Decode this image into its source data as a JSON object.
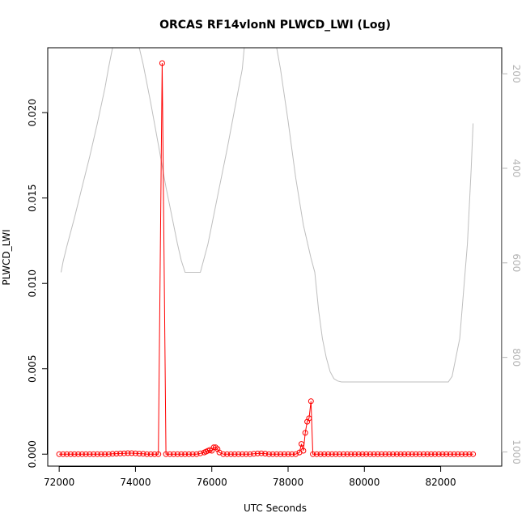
{
  "chart_data": {
    "type": "line",
    "title": "ORCAS RF14vlonN PLWCD_LWI (Log)",
    "xlabel": "UTC Seconds",
    "ylabel": "PLWCD_LWI",
    "xlim": [
      71700,
      83600
    ],
    "ylim": [
      -0.0007,
      0.0238
    ],
    "x_ticks": [
      72000,
      74000,
      76000,
      78000,
      80000,
      82000
    ],
    "x_tick_labels": [
      "72000",
      "74000",
      "76000",
      "78000",
      "80000",
      "82000"
    ],
    "y_ticks": [
      0.0,
      0.005,
      0.01,
      0.015,
      0.02
    ],
    "y_tick_labels": [
      "0.000",
      "0.005",
      "0.010",
      "0.015",
      "0.020"
    ],
    "y2_lim": [
      1030,
      145
    ],
    "y2_ticks": [
      200,
      400,
      600,
      800,
      1000
    ],
    "y2_tick_labels": [
      "200",
      "400",
      "600",
      "800",
      "1000"
    ],
    "colors": {
      "primary": "#ff0000",
      "secondary": "#bebebe",
      "axis": "#000000",
      "right_axis": "#b5b5b5"
    },
    "series": [
      {
        "role": "primary",
        "style": "line-with-open-circles",
        "color": "#ff0000",
        "points": [
          [
            72000,
            0
          ],
          [
            72100,
            0
          ],
          [
            72200,
            0
          ],
          [
            72300,
            0
          ],
          [
            72400,
            0
          ],
          [
            72500,
            0
          ],
          [
            72600,
            0
          ],
          [
            72700,
            0
          ],
          [
            72800,
            0
          ],
          [
            72900,
            0
          ],
          [
            73000,
            0
          ],
          [
            73100,
            0
          ],
          [
            73200,
            0
          ],
          [
            73300,
            0
          ],
          [
            73400,
            2e-05
          ],
          [
            73500,
            3e-05
          ],
          [
            73600,
            4e-05
          ],
          [
            73700,
            5e-05
          ],
          [
            73800,
            6e-05
          ],
          [
            73900,
            6e-05
          ],
          [
            74000,
            5e-05
          ],
          [
            74100,
            3e-05
          ],
          [
            74200,
            2e-05
          ],
          [
            74300,
            0
          ],
          [
            74400,
            0
          ],
          [
            74500,
            0
          ],
          [
            74600,
            0
          ],
          [
            74700,
            0.0229
          ],
          [
            74800,
            0
          ],
          [
            74900,
            0
          ],
          [
            75000,
            0
          ],
          [
            75100,
            0
          ],
          [
            75200,
            0
          ],
          [
            75300,
            0
          ],
          [
            75400,
            0
          ],
          [
            75500,
            0
          ],
          [
            75600,
            0
          ],
          [
            75700,
            5e-05
          ],
          [
            75800,
            0.0001
          ],
          [
            75850,
            0.00015
          ],
          [
            75900,
            0.0002
          ],
          [
            75950,
            0.00025
          ],
          [
            76000,
            0.0002
          ],
          [
            76050,
            0.0004
          ],
          [
            76100,
            0.0004
          ],
          [
            76150,
            0.0003
          ],
          [
            76200,
            0.0001
          ],
          [
            76300,
            0
          ],
          [
            76400,
            0
          ],
          [
            76500,
            0
          ],
          [
            76600,
            0
          ],
          [
            76700,
            0
          ],
          [
            76800,
            0
          ],
          [
            76900,
            0
          ],
          [
            77000,
            0
          ],
          [
            77100,
            2e-05
          ],
          [
            77200,
            4e-05
          ],
          [
            77300,
            5e-05
          ],
          [
            77400,
            3e-05
          ],
          [
            77500,
            0
          ],
          [
            77600,
            0
          ],
          [
            77700,
            0
          ],
          [
            77800,
            0
          ],
          [
            77900,
            0
          ],
          [
            78000,
            0
          ],
          [
            78100,
            0
          ],
          [
            78200,
            0
          ],
          [
            78300,
            0.0001
          ],
          [
            78350,
            0.0006
          ],
          [
            78400,
            0.0002
          ],
          [
            78450,
            0.00125
          ],
          [
            78500,
            0.0019
          ],
          [
            78550,
            0.0021
          ],
          [
            78600,
            0.0031
          ],
          [
            78650,
            0
          ],
          [
            78750,
            0
          ],
          [
            78850,
            0
          ],
          [
            78950,
            0
          ],
          [
            79050,
            0
          ],
          [
            79150,
            0
          ],
          [
            79250,
            0
          ],
          [
            79350,
            0
          ],
          [
            79450,
            0
          ],
          [
            79550,
            0
          ],
          [
            79650,
            0
          ],
          [
            79750,
            0
          ],
          [
            79850,
            0
          ],
          [
            79950,
            0
          ],
          [
            80050,
            0
          ],
          [
            80150,
            0
          ],
          [
            80250,
            0
          ],
          [
            80350,
            0
          ],
          [
            80450,
            0
          ],
          [
            80550,
            0
          ],
          [
            80650,
            0
          ],
          [
            80750,
            0
          ],
          [
            80850,
            0
          ],
          [
            80950,
            0
          ],
          [
            81050,
            0
          ],
          [
            81150,
            0
          ],
          [
            81250,
            0
          ],
          [
            81350,
            0
          ],
          [
            81450,
            0
          ],
          [
            81550,
            0
          ],
          [
            81650,
            0
          ],
          [
            81750,
            0
          ],
          [
            81850,
            0
          ],
          [
            81950,
            0
          ],
          [
            82050,
            0
          ],
          [
            82150,
            0
          ],
          [
            82250,
            0
          ],
          [
            82350,
            0
          ],
          [
            82450,
            0
          ],
          [
            82550,
            0
          ],
          [
            82650,
            0
          ],
          [
            82750,
            0
          ],
          [
            82850,
            0
          ]
        ]
      },
      {
        "role": "secondary",
        "axis": "right",
        "style": "line",
        "color": "#bebebe",
        "points": [
          [
            72050,
            620
          ],
          [
            72100,
            598
          ],
          [
            72200,
            565
          ],
          [
            72400,
            505
          ],
          [
            72600,
            440
          ],
          [
            72800,
            375
          ],
          [
            73000,
            305
          ],
          [
            73200,
            230
          ],
          [
            73300,
            185
          ],
          [
            73400,
            145
          ],
          [
            74100,
            145
          ],
          [
            74200,
            180
          ],
          [
            74400,
            262
          ],
          [
            74600,
            350
          ],
          [
            74800,
            440
          ],
          [
            75000,
            520
          ],
          [
            75100,
            560
          ],
          [
            75200,
            595
          ],
          [
            75300,
            620
          ],
          [
            75700,
            620
          ],
          [
            75800,
            590
          ],
          [
            75900,
            560
          ],
          [
            76000,
            520
          ],
          [
            76200,
            440
          ],
          [
            76400,
            360
          ],
          [
            76600,
            275
          ],
          [
            76800,
            190
          ],
          [
            76850,
            145
          ],
          [
            77700,
            145
          ],
          [
            77800,
            190
          ],
          [
            78000,
            300
          ],
          [
            78200,
            420
          ],
          [
            78400,
            520
          ],
          [
            78600,
            590
          ],
          [
            78700,
            620
          ],
          [
            78800,
            700
          ],
          [
            78900,
            760
          ],
          [
            79000,
            800
          ],
          [
            79100,
            830
          ],
          [
            79200,
            845
          ],
          [
            79300,
            850
          ],
          [
            79400,
            852
          ],
          [
            79600,
            852
          ],
          [
            80000,
            852
          ],
          [
            80500,
            852
          ],
          [
            81000,
            852
          ],
          [
            81500,
            852
          ],
          [
            82000,
            852
          ],
          [
            82200,
            852
          ],
          [
            82300,
            840
          ],
          [
            82500,
            760
          ],
          [
            82700,
            560
          ],
          [
            82800,
            400
          ],
          [
            82850,
            305
          ]
        ]
      }
    ]
  }
}
